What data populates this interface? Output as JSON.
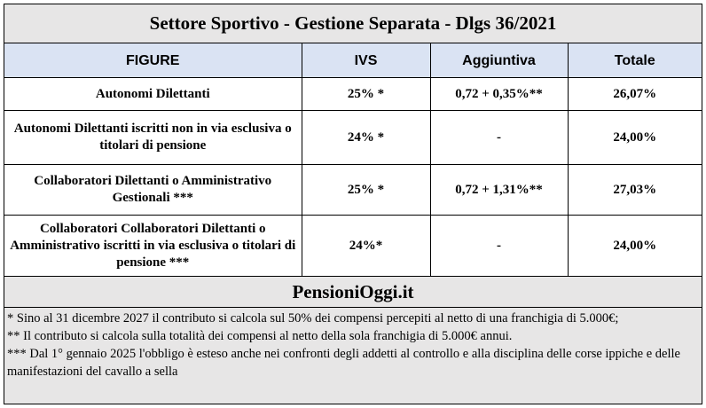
{
  "title": "Settore Sportivo - Gestione Separata - Dlgs 36/2021",
  "table": {
    "headers": [
      "FIGURE",
      "IVS",
      "Aggiuntiva",
      "Totale"
    ],
    "rows": [
      [
        "Autonomi Dilettanti",
        "25% *",
        "0,72 + 0,35%**",
        "26,07%"
      ],
      [
        "Autonomi Dilettanti iscritti non in via esclusiva o titolari di pensione",
        "24% *",
        "-",
        "24,00%"
      ],
      [
        "Collaboratori Dilettanti o Amministrativo Gestionali ***",
        "25% *",
        "0,72 + 1,31%**",
        "27,03%"
      ],
      [
        "Collaboratori Collaboratori Dilettanti o Amministrativo iscritti in via esclusiva o titolari di pensione ***",
        "24%*",
        "-",
        "24,00%"
      ]
    ]
  },
  "footer": {
    "brand": "PensioniOggi.it"
  },
  "notes": [
    "* Sino al 31 dicembre 2027 il contributo si calcola sul 50% dei compensi percepiti al netto di una franchigia di 5.000€;",
    "** Il contributo si calcola sulla totalità dei compensi al netto della sola franchigia di 5.000€ annui.",
    "*** Dal 1° gennaio 2025 l'obbligo è esteso anche nei confronti degli addetti al controllo e alla disciplina delle corse ippiche e delle manifestazioni del cavallo a sella"
  ]
}
